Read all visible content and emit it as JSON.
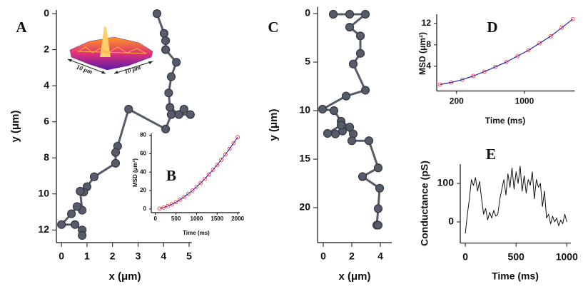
{
  "chart_data": [
    {
      "type": "line",
      "label": "A",
      "xlabel": "x (μm)",
      "ylabel": "y (μm)",
      "annotations": [
        "10 μm",
        "10 μm"
      ],
      "x": [
        3.74,
        4.02,
        4.08,
        4.08,
        4.5,
        4.3,
        4.2,
        4.25,
        4.6,
        5.05,
        4.8,
        4.3,
        4.08,
        2.63,
        2.2,
        2.12,
        2.12,
        1.28,
        1.0,
        0.87,
        0.73,
        0.81,
        0.61,
        0.39,
        0,
        0.53,
        0.81,
        0.81
      ],
      "series": [
        {
          "color": "#555b68",
          "mode": "lines+markers",
          "values": [
            0,
            1.1,
            1.5,
            2.0,
            2.7,
            3.5,
            4.4,
            5.2,
            5.6,
            5.6,
            5.3,
            5.6,
            6.4,
            5.3,
            7.35,
            7.7,
            8.3,
            9.05,
            9.6,
            9.9,
            9.85,
            10.9,
            10.7,
            11.1,
            11.7,
            11.7,
            12.0,
            12.3
          ]
        }
      ],
      "xlim": [
        -0.2,
        5.1
      ],
      "xticks": [
        0,
        1,
        2,
        3,
        4,
        5
      ],
      "ylim": [
        -0.2,
        12.7
      ],
      "yticks": [
        0,
        2,
        4,
        6,
        8,
        10,
        12
      ],
      "y_inverted": true
    },
    {
      "type": "line",
      "label": "B",
      "xlabel": "Time (ms)",
      "ylabel": "MSD (μm²)",
      "x": [
        100,
        200,
        300,
        400,
        500,
        600,
        700,
        800,
        900,
        1000,
        1100,
        1200,
        1300,
        1400,
        1500,
        1600,
        1700,
        1800,
        1900,
        2000
      ],
      "series": [
        {
          "color": "#ff3333",
          "mode": "markers",
          "values": [
            0.48,
            1.55,
            3.1,
            5.05,
            7.4,
            10.1,
            13.1,
            16.4,
            20.1,
            24.0,
            28.2,
            32.7,
            37.5,
            42.5,
            47.8,
            53.4,
            59.2,
            65.2,
            71.5,
            78
          ]
        },
        {
          "color": "#2222aa",
          "mode": "lines",
          "values": [
            0.48,
            1.55,
            3.1,
            5.05,
            7.4,
            10.1,
            13.1,
            16.4,
            20.1,
            24.0,
            28.2,
            32.7,
            37.5,
            42.5,
            47.8,
            53.4,
            59.2,
            65.2,
            71.5,
            78
          ]
        }
      ],
      "xlim": [
        -100,
        2050
      ],
      "xticks": [
        0,
        500,
        1000,
        1500,
        2000
      ],
      "ylim": [
        -4,
        82
      ],
      "yticks": [
        0,
        20,
        40,
        60,
        80
      ]
    },
    {
      "type": "line",
      "label": "C",
      "xlabel": "x (μm)",
      "ylabel": "y (μm)",
      "x": [
        0.7,
        1.85,
        2.95,
        1.85,
        2.6,
        2.6,
        2.1,
        2.95,
        1.6,
        -0.05,
        0.75,
        1.25,
        1.85,
        1.35,
        0.85,
        0.3,
        1.25,
        2.1,
        2.0,
        3.2,
        3.85,
        2.75,
        3.95,
        3.85,
        3.75,
        3.85
      ],
      "series": [
        {
          "color": "#555b68",
          "mode": "lines+markers",
          "values": [
            0.07,
            0.07,
            0.07,
            1.4,
            2.3,
            4.1,
            5.2,
            7.9,
            8.5,
            9.85,
            10.0,
            11.1,
            11.7,
            12.1,
            12.4,
            12.35,
            11.5,
            12.4,
            13.1,
            13.1,
            15.9,
            16.8,
            18.0,
            20.1,
            21.8,
            21.8
          ]
        }
      ],
      "xlim": [
        -0.4,
        4.8
      ],
      "xticks": [
        0,
        2,
        4
      ],
      "ylim": [
        -0.7,
        23.6
      ],
      "yticks": [
        0,
        5,
        10,
        15,
        20
      ],
      "y_inverted": true
    },
    {
      "type": "line",
      "label": "D",
      "xlabel": "Time (ms)",
      "ylabel": "MSD (μm²)",
      "x": [
        135,
        176,
        229,
        297,
        386,
        502,
        652,
        848,
        1102,
        1433,
        1863,
        2422,
        3149
      ],
      "series": [
        {
          "color": "#ff3333",
          "mode": "markers",
          "values": [
            0.6,
            1.0,
            1.5,
            2.2,
            3.0,
            3.9,
            4.8,
            5.9,
            7.0,
            8.3,
            9.6,
            11.2,
            12.8
          ]
        },
        {
          "color": "#2222aa",
          "mode": "lines",
          "values": [
            0.6,
            1.0,
            1.5,
            2.2,
            3.0,
            3.9,
            4.8,
            5.9,
            7.0,
            8.3,
            9.6,
            11.2,
            12.8
          ]
        }
      ],
      "xscale": "log",
      "xlim": [
        125,
        3300
      ],
      "xticks": [
        200,
        1000
      ],
      "ylim": [
        -0.6,
        13.7
      ],
      "yticks": [
        4,
        8,
        12
      ]
    },
    {
      "type": "line",
      "label": "E",
      "xlabel": "Time (ms)",
      "ylabel": "Conductance (pS)",
      "x": [
        0,
        20,
        40,
        60,
        80,
        100,
        120,
        140,
        160,
        180,
        200,
        220,
        240,
        260,
        280,
        300,
        320,
        340,
        360,
        380,
        400,
        420,
        440,
        460,
        480,
        500,
        520,
        540,
        560,
        580,
        600,
        620,
        640,
        660,
        680,
        700,
        720,
        740,
        760,
        780,
        800,
        820,
        840,
        860,
        880,
        900,
        920,
        940,
        960,
        980,
        1000
      ],
      "series": [
        {
          "color": "#111111",
          "mode": "lines",
          "values": [
            -30,
            20,
            60,
            110,
            95,
            115,
            80,
            105,
            60,
            20,
            35,
            5,
            25,
            10,
            30,
            15,
            20,
            60,
            85,
            110,
            70,
            125,
            90,
            140,
            85,
            130,
            100,
            145,
            80,
            120,
            75,
            110,
            95,
            130,
            60,
            110,
            90,
            100,
            40,
            80,
            10,
            20,
            -5,
            15,
            0,
            10,
            -10,
            5,
            -5,
            20,
            0
          ]
        }
      ],
      "xlim": [
        -50,
        1040
      ],
      "xticks": [
        0,
        500,
        1000
      ],
      "ylim": [
        -55,
        150
      ],
      "yticks": [
        0,
        100
      ]
    }
  ]
}
